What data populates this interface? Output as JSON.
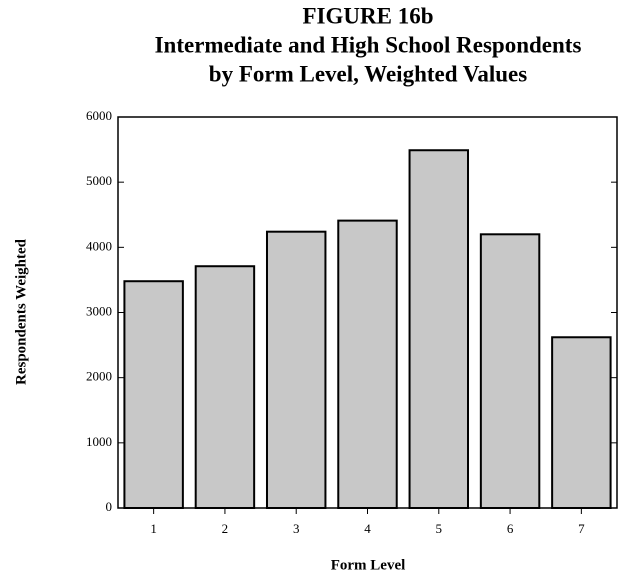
{
  "chart_data": {
    "type": "bar",
    "title": [
      "FIGURE 16b",
      "Intermediate and High School Respondents",
      "by Form Level, Weighted Values"
    ],
    "x_label": "Form Level",
    "y_label": "Respondents Weighted",
    "categories": [
      "1",
      "2",
      "3",
      "4",
      "5",
      "6",
      "7"
    ],
    "values": [
      3480,
      3710,
      4240,
      4410,
      5490,
      4200,
      2620
    ],
    "color": "#c8c8c8",
    "ylim": [
      0,
      6000
    ],
    "yticks": [
      0,
      1000,
      2000,
      3000,
      4000,
      5000,
      6000
    ],
    "grid": false
  }
}
